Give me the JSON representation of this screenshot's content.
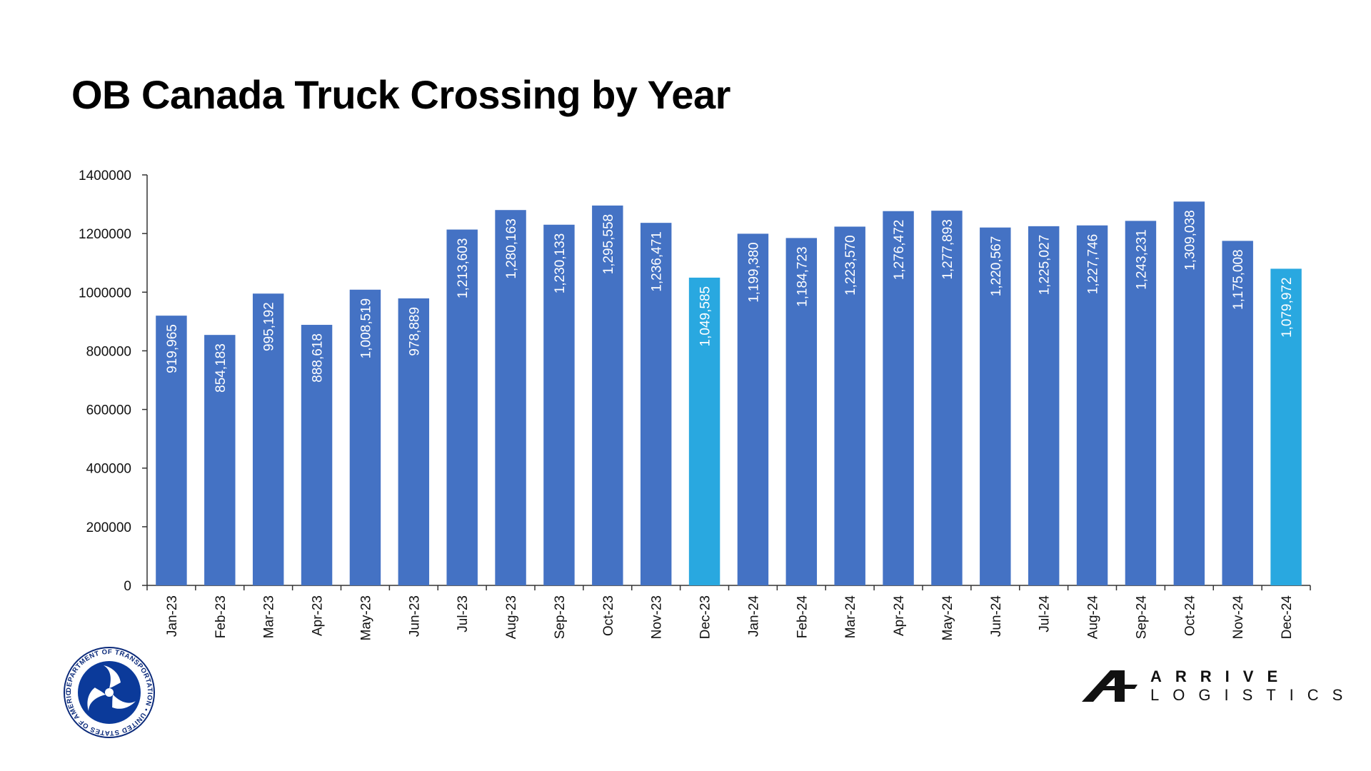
{
  "title": "OB Canada Truck Crossing by Year",
  "chart_data": {
    "type": "bar",
    "title": "OB Canada Truck Crossing by Year",
    "xlabel": "",
    "ylabel": "",
    "ylim": [
      0,
      1400000
    ],
    "yticks": [
      0,
      200000,
      400000,
      600000,
      800000,
      1000000,
      1200000,
      1400000
    ],
    "ytick_labels": [
      "0",
      "200000",
      "400000",
      "600000",
      "800000",
      "1000000",
      "1200000",
      "1400000"
    ],
    "grid": false,
    "legend": "none",
    "categories": [
      "Jan-23",
      "Feb-23",
      "Mar-23",
      "Apr-23",
      "May-23",
      "Jun-23",
      "Jul-23",
      "Aug-23",
      "Sep-23",
      "Oct-23",
      "Nov-23",
      "Dec-23",
      "Jan-24",
      "Feb-24",
      "Mar-24",
      "Apr-24",
      "May-24",
      "Jun-24",
      "Jul-24",
      "Aug-24",
      "Sep-24",
      "Oct-24",
      "Nov-24",
      "Dec-24"
    ],
    "values": [
      919965,
      854183,
      995192,
      888618,
      1008519,
      978889,
      1213603,
      1280163,
      1230133,
      1295558,
      1236471,
      1049585,
      1199380,
      1184723,
      1223570,
      1276472,
      1277893,
      1220567,
      1225027,
      1227746,
      1243231,
      1309038,
      1175008,
      1079972
    ],
    "value_labels": [
      "919,965",
      "854,183",
      "995,192",
      "888,618",
      "1,008,519",
      "978,889",
      "1,213,603",
      "1,280,163",
      "1,230,133",
      "1,295,558",
      "1,236,471",
      "1,049,585",
      "1,199,380",
      "1,184,723",
      "1,223,570",
      "1,276,472",
      "1,277,893",
      "1,220,567",
      "1,225,027",
      "1,227,746",
      "1,243,231",
      "1,309,038",
      "1,175,008",
      "1,079,972"
    ],
    "highlight_categories": [
      "Dec-23",
      "Dec-24"
    ],
    "colors": {
      "bar": "#4472C4",
      "highlight": "#29A8E0",
      "label": "#FFFFFF"
    }
  },
  "logos": {
    "dot": {
      "ring_text": "DEPARTMENT OF TRANSPORTATION • UNITED STATES OF AMERICA",
      "icon": "triskelion-seal-icon"
    },
    "arrive": {
      "line1": "ARRIVE",
      "line2": "LOGISTICS",
      "icon": "arrive-mark-icon"
    }
  }
}
